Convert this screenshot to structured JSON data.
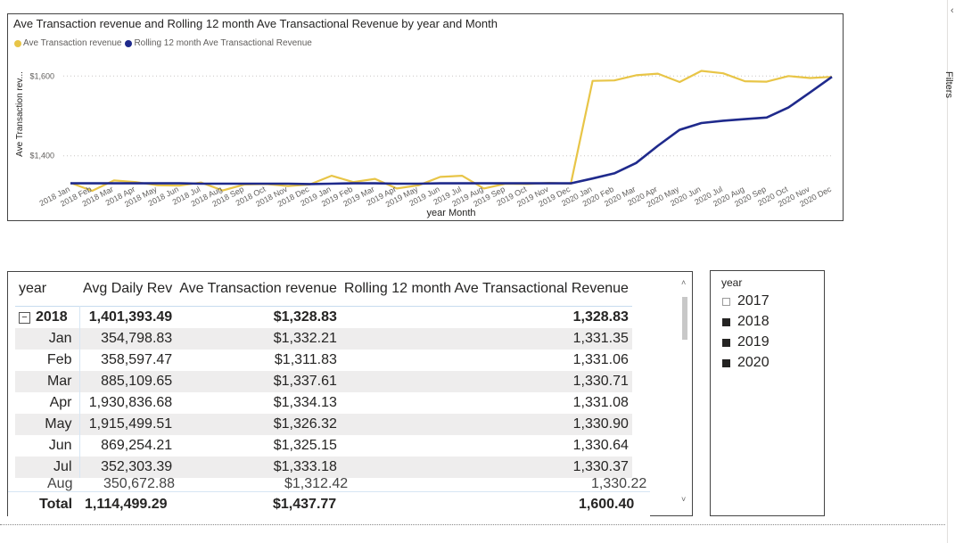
{
  "chart": {
    "title": "Ave Transaction revenue and Rolling 12 month Ave Transactional Revenue by year and Month",
    "legend": [
      {
        "label": "Ave Transaction revenue",
        "color": "#e8c547"
      },
      {
        "label": "Rolling 12 month Ave Transactional Revenue",
        "color": "#1f2a8c"
      }
    ],
    "ylabel": "Ave Transaction rev...",
    "xlabel": "year Month",
    "yticks": [
      "$1,400",
      "$1,600"
    ]
  },
  "chart_data": {
    "type": "line",
    "categories": [
      "2018 Jan",
      "2018 Feb",
      "2018 Mar",
      "2018 Apr",
      "2018 May",
      "2018 Jun",
      "2018 Jul",
      "2018 Aug",
      "2018 Sep",
      "2018 Oct",
      "2018 Nov",
      "2018 Dec",
      "2019 Jan",
      "2019 Feb",
      "2019 Mar",
      "2019 Apr",
      "2019 May",
      "2019 Jun",
      "2019 Jul",
      "2019 Aug",
      "2019 Sep",
      "2019 Oct",
      "2019 Nov",
      "2019 Dec",
      "2020 Jan",
      "2020 Feb",
      "2020 Mar",
      "2020 Apr",
      "2020 May",
      "2020 Jun",
      "2020 Jul",
      "2020 Aug",
      "2020 Sep",
      "2020 Oct",
      "2020 Nov",
      "2020 Dec"
    ],
    "series": [
      {
        "name": "Ave Transaction revenue",
        "color": "#e8c547",
        "values": [
          1332,
          1312,
          1338,
          1334,
          1326,
          1325,
          1333,
          1313,
          1328,
          1329,
          1324,
          1328,
          1350,
          1334,
          1342,
          1318,
          1326,
          1347,
          1350,
          1318,
          1330,
          1329,
          1332,
          1330,
          1588,
          1589,
          1602,
          1606,
          1585,
          1613,
          1607,
          1587,
          1586,
          1600,
          1595,
          1598
        ]
      },
      {
        "name": "Rolling 12 month Ave Transactional Revenue",
        "color": "#1f2a8c",
        "values": [
          1331,
          1331,
          1331,
          1331,
          1331,
          1331,
          1330,
          1330,
          1330,
          1330,
          1330,
          1329,
          1330,
          1331,
          1331,
          1330,
          1330,
          1331,
          1331,
          1331,
          1331,
          1331,
          1331,
          1331,
          1343,
          1356,
          1382,
          1425,
          1465,
          1482,
          1488,
          1492,
          1496,
          1521,
          1559,
          1598
        ]
      }
    ],
    "ylim": [
      1330,
      1670
    ],
    "gridlines": [
      1400,
      1600
    ]
  },
  "table": {
    "headers": [
      "year",
      "Avg Daily Rev",
      "Ave Transaction revenue",
      "Rolling 12 month Ave Transactional Revenue"
    ],
    "year_row": {
      "year": "2018",
      "expander": "−",
      "avg_daily": "1,401,393.49",
      "ave_trans": "$1,328.83",
      "rolling": "1,328.83"
    },
    "rows": [
      {
        "month": "Jan",
        "avg_daily": "354,798.83",
        "ave_trans": "$1,332.21",
        "rolling": "1,331.35"
      },
      {
        "month": "Feb",
        "avg_daily": "358,597.47",
        "ave_trans": "$1,311.83",
        "rolling": "1,331.06"
      },
      {
        "month": "Mar",
        "avg_daily": "885,109.65",
        "ave_trans": "$1,337.61",
        "rolling": "1,330.71"
      },
      {
        "month": "Apr",
        "avg_daily": "1,930,836.68",
        "ave_trans": "$1,334.13",
        "rolling": "1,331.08"
      },
      {
        "month": "May",
        "avg_daily": "1,915,499.51",
        "ave_trans": "$1,326.32",
        "rolling": "1,330.90"
      },
      {
        "month": "Jun",
        "avg_daily": "869,254.21",
        "ave_trans": "$1,325.15",
        "rolling": "1,330.64"
      },
      {
        "month": "Jul",
        "avg_daily": "352,303.39",
        "ave_trans": "$1,333.18",
        "rolling": "1,330.37"
      }
    ],
    "cut_row": {
      "month": "Aug",
      "avg_daily": "350,672.88",
      "ave_trans": "$1,312.42",
      "rolling": "1,330.22"
    },
    "total": {
      "label": "Total",
      "avg_daily": "1,114,499.29",
      "ave_trans": "$1,437.77",
      "rolling": "1,600.40"
    }
  },
  "slicer": {
    "title": "year",
    "items": [
      {
        "label": "2017",
        "checked": false
      },
      {
        "label": "2018",
        "checked": true
      },
      {
        "label": "2019",
        "checked": true
      },
      {
        "label": "2020",
        "checked": true
      }
    ]
  },
  "filters_pane": {
    "label": "Filters"
  }
}
